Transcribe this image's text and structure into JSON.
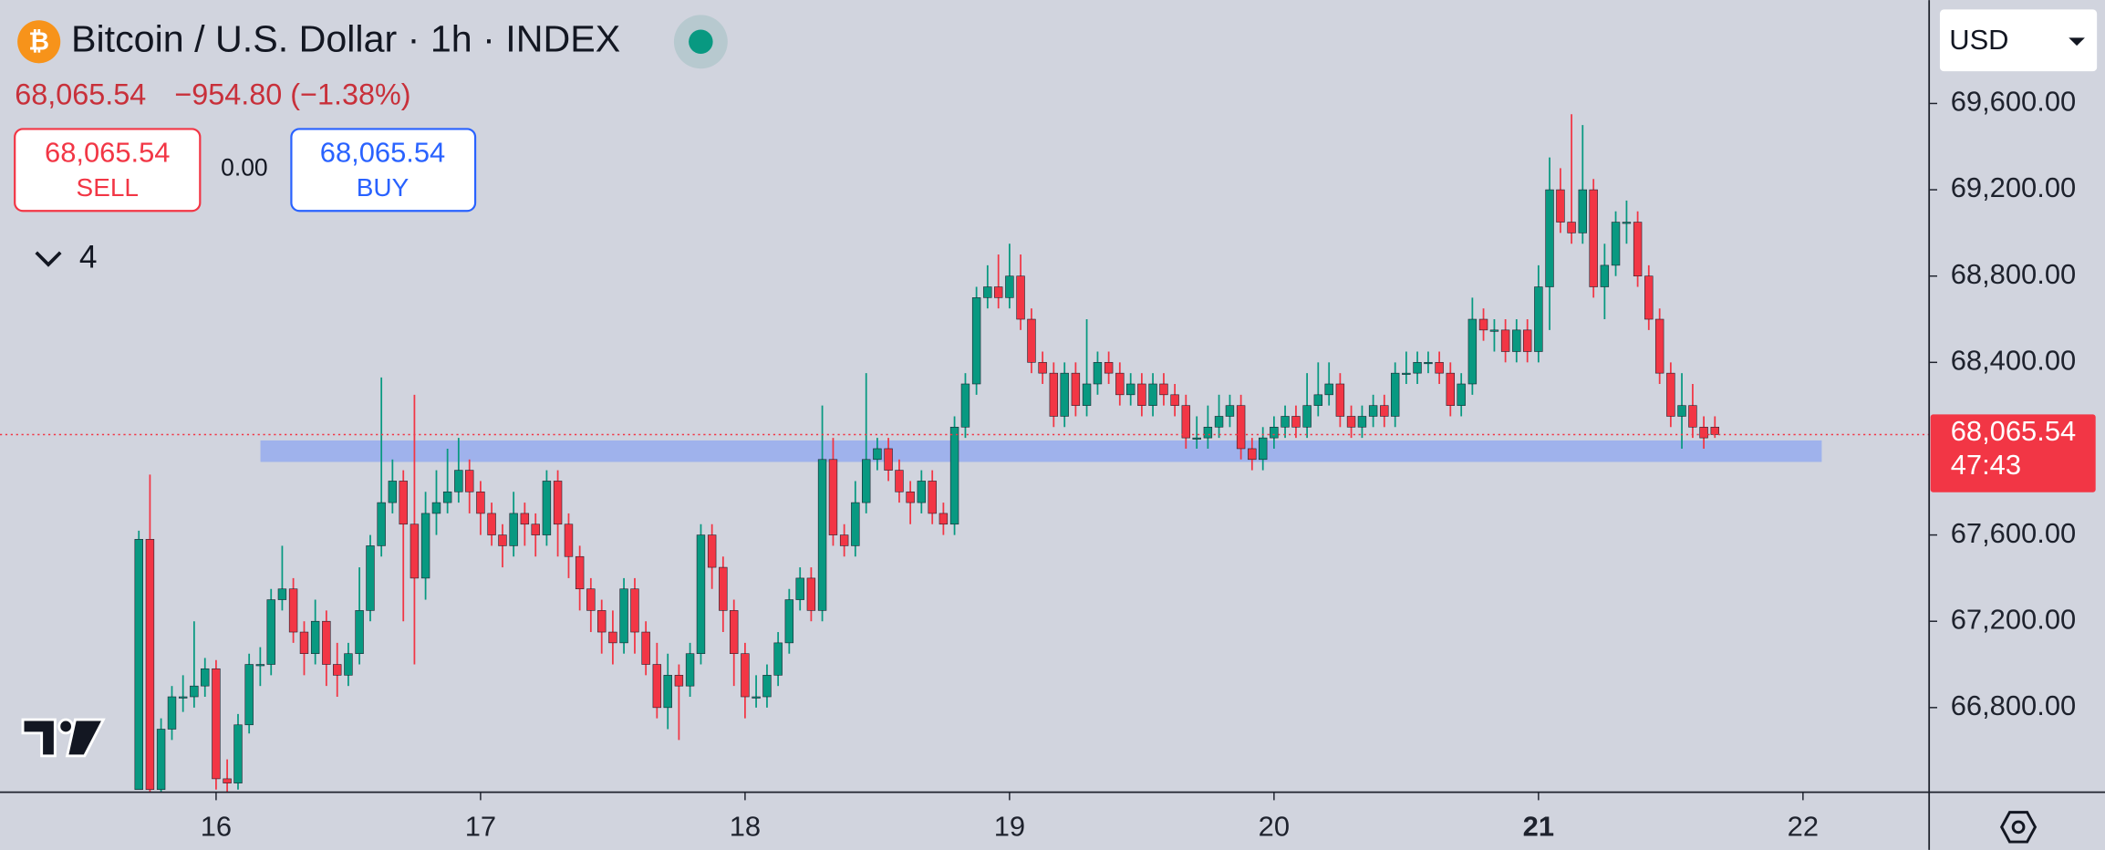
{
  "header": {
    "title": "Bitcoin / U.S. Dollar · 1h · INDEX",
    "price": "68,065.54",
    "change": "−954.80 (−1.38%)",
    "sell_price": "68,065.54",
    "sell_label": "SELL",
    "spread": "0.00",
    "buy_price": "68,065.54",
    "buy_label": "BUY",
    "indicators_count": "4",
    "currency": "USD"
  },
  "chart_data": {
    "type": "candlestick",
    "up_color": "#089981",
    "down_color": "#f23645",
    "x": [
      15.708,
      15.75,
      15.792,
      15.833,
      15.875,
      15.917,
      15.958,
      16,
      16.042,
      16.083,
      16.125,
      16.167,
      16.208,
      16.25,
      16.292,
      16.333,
      16.375,
      16.417,
      16.458,
      16.5,
      16.542,
      16.583,
      16.625,
      16.667,
      16.708,
      16.75,
      16.792,
      16.833,
      16.875,
      16.917,
      16.958,
      17,
      17.042,
      17.083,
      17.125,
      17.167,
      17.208,
      17.25,
      17.292,
      17.333,
      17.375,
      17.417,
      17.458,
      17.5,
      17.542,
      17.583,
      17.625,
      17.667,
      17.708,
      17.75,
      17.792,
      17.833,
      17.875,
      17.917,
      17.958,
      18,
      18.042,
      18.083,
      18.125,
      18.167,
      18.208,
      18.25,
      18.292,
      18.333,
      18.375,
      18.417,
      18.458,
      18.5,
      18.542,
      18.583,
      18.625,
      18.667,
      18.708,
      18.75,
      18.792,
      18.833,
      18.875,
      18.917,
      18.958,
      19,
      19.042,
      19.083,
      19.125,
      19.167,
      19.208,
      19.25,
      19.292,
      19.333,
      19.375,
      19.417,
      19.458,
      19.5,
      19.542,
      19.583,
      19.625,
      19.667,
      19.708,
      19.75,
      19.792,
      19.833,
      19.875,
      19.917,
      19.958,
      20,
      20.042,
      20.083,
      20.125,
      20.167,
      20.208,
      20.25,
      20.292,
      20.333,
      20.375,
      20.417,
      20.458,
      20.5,
      20.542,
      20.583,
      20.625,
      20.667,
      20.708,
      20.75,
      20.792,
      20.833,
      20.875,
      20.917,
      20.958,
      21,
      21.042,
      21.083,
      21.125,
      21.167,
      21.208,
      21.25,
      21.292,
      21.333,
      21.375,
      21.417,
      21.458,
      21.5,
      21.542,
      21.583,
      21.625,
      21.667
    ],
    "open": [
      66420,
      67580,
      66420,
      66700,
      66850,
      66850,
      66900,
      66980,
      66470,
      66450,
      66720,
      67000,
      67000,
      67300,
      67350,
      67150,
      67050,
      67200,
      67000,
      66950,
      67050,
      67250,
      67550,
      67750,
      67850,
      67650,
      67400,
      67700,
      67750,
      67800,
      67900,
      67800,
      67700,
      67600,
      67550,
      67700,
      67650,
      67600,
      67850,
      67650,
      67500,
      67350,
      67250,
      67150,
      67100,
      67350,
      67150,
      67000,
      66800,
      66950,
      66900,
      67050,
      67600,
      67450,
      67250,
      67050,
      66850,
      66850,
      66950,
      67100,
      67300,
      67400,
      67250,
      67950,
      67600,
      67550,
      67750,
      67950,
      68000,
      67900,
      67800,
      67750,
      67850,
      67700,
      67650,
      68100,
      68300,
      68700,
      68750,
      68700,
      68800,
      68600,
      68400,
      68350,
      68150,
      68350,
      68200,
      68300,
      68400,
      68350,
      68250,
      68300,
      68200,
      68300,
      68250,
      68200,
      68050,
      68050,
      68100,
      68150,
      68200,
      68000,
      67950,
      68050,
      68100,
      68150,
      68100,
      68200,
      68250,
      68300,
      68150,
      68100,
      68150,
      68200,
      68150,
      68350,
      68350,
      68400,
      68400,
      68350,
      68200,
      68300,
      68600,
      68550,
      68550,
      68450,
      68550,
      68450,
      68750,
      69200,
      69050,
      69000,
      69200,
      68750,
      68850,
      69050,
      69050,
      68800,
      68600,
      68350,
      68150,
      68200,
      68100,
      68100
    ],
    "high": [
      67620,
      67880,
      66750,
      66900,
      66950,
      67200,
      67030,
      67020,
      66560,
      66770,
      67050,
      67080,
      67350,
      67550,
      67400,
      67200,
      67300,
      67250,
      67100,
      67100,
      67450,
      67600,
      68330,
      67950,
      67900,
      68250,
      67800,
      67900,
      68000,
      68050,
      67950,
      67850,
      67750,
      67650,
      67800,
      67750,
      67700,
      67900,
      67900,
      67700,
      67550,
      67400,
      67300,
      67250,
      67400,
      67400,
      67200,
      67100,
      67050,
      67000,
      67100,
      67650,
      67650,
      67500,
      67300,
      67100,
      66950,
      67000,
      67150,
      67350,
      67450,
      67450,
      68200,
      68050,
      67650,
      67850,
      68350,
      68050,
      68050,
      67950,
      67850,
      67900,
      67900,
      67750,
      68150,
      68350,
      68750,
      68850,
      68900,
      68950,
      68900,
      68650,
      68450,
      68400,
      68400,
      68400,
      68600,
      68450,
      68450,
      68400,
      68350,
      68350,
      68350,
      68350,
      68300,
      68250,
      68150,
      68200,
      68250,
      68250,
      68250,
      68050,
      68100,
      68150,
      68200,
      68200,
      68350,
      68400,
      68400,
      68350,
      68200,
      68200,
      68250,
      68250,
      68400,
      68450,
      68450,
      68450,
      68450,
      68400,
      68350,
      68700,
      68650,
      68600,
      68600,
      68600,
      68600,
      68850,
      69350,
      69300,
      69550,
      69500,
      69250,
      68950,
      69100,
      69150,
      69100,
      68850,
      68650,
      68400,
      68350,
      68300,
      68150,
      68150
    ],
    "low": [
      66420,
      66410,
      66410,
      66650,
      66780,
      66800,
      66850,
      66420,
      66410,
      66420,
      66680,
      66900,
      66950,
      67250,
      67100,
      66950,
      67000,
      66900,
      66850,
      66900,
      67000,
      67200,
      67500,
      67700,
      67200,
      67000,
      67300,
      67600,
      67700,
      67750,
      67700,
      67600,
      67550,
      67450,
      67500,
      67550,
      67500,
      67550,
      67500,
      67400,
      67250,
      67150,
      67050,
      67000,
      67050,
      67050,
      66950,
      66750,
      66700,
      66650,
      66850,
      67000,
      67350,
      67150,
      66900,
      66750,
      66800,
      66800,
      66900,
      67050,
      67250,
      67200,
      67200,
      67550,
      67500,
      67500,
      67700,
      67900,
      67850,
      67750,
      67650,
      67700,
      67650,
      67600,
      67600,
      68050,
      68250,
      68650,
      68650,
      68650,
      68550,
      68350,
      68300,
      68100,
      68100,
      68150,
      68150,
      68250,
      68300,
      68200,
      68200,
      68150,
      68150,
      68200,
      68150,
      68000,
      68000,
      68000,
      68050,
      68100,
      67950,
      67900,
      67900,
      68000,
      68050,
      68050,
      68050,
      68150,
      68200,
      68100,
      68050,
      68050,
      68100,
      68100,
      68100,
      68300,
      68300,
      68350,
      68300,
      68150,
      68150,
      68250,
      68500,
      68450,
      68400,
      68400,
      68400,
      68400,
      68550,
      69000,
      68950,
      68950,
      68700,
      68600,
      68800,
      68950,
      68750,
      68550,
      68300,
      68100,
      68000,
      68050,
      68000,
      68050
    ],
    "close": [
      67580,
      66420,
      66700,
      66850,
      66850,
      66900,
      66980,
      66470,
      66450,
      66720,
      67000,
      67000,
      67300,
      67350,
      67150,
      67050,
      67200,
      67000,
      66950,
      67050,
      67250,
      67550,
      67750,
      67850,
      67650,
      67400,
      67700,
      67750,
      67800,
      67900,
      67800,
      67700,
      67600,
      67550,
      67700,
      67650,
      67600,
      67850,
      67650,
      67500,
      67350,
      67250,
      67150,
      67100,
      67350,
      67150,
      67000,
      66800,
      66950,
      66900,
      67050,
      67600,
      67450,
      67250,
      67050,
      66850,
      66850,
      66950,
      67100,
      67300,
      67400,
      67250,
      67950,
      67600,
      67550,
      67750,
      67950,
      68000,
      67900,
      67800,
      67750,
      67850,
      67700,
      67650,
      68100,
      68300,
      68700,
      68750,
      68700,
      68800,
      68600,
      68400,
      68350,
      68150,
      68350,
      68200,
      68300,
      68400,
      68350,
      68250,
      68300,
      68200,
      68300,
      68250,
      68200,
      68050,
      68050,
      68100,
      68150,
      68200,
      68000,
      67950,
      68050,
      68100,
      68150,
      68100,
      68200,
      68250,
      68300,
      68150,
      68100,
      68150,
      68200,
      68150,
      68350,
      68350,
      68400,
      68400,
      68350,
      68200,
      68300,
      68600,
      68550,
      68550,
      68450,
      68550,
      68450,
      68750,
      69200,
      69050,
      69000,
      69200,
      68750,
      68850,
      69050,
      69050,
      68800,
      68600,
      68350,
      68150,
      68200,
      68100,
      68050,
      68065.54
    ],
    "xlim": [
      15.183,
      22.477
    ],
    "xticks": [
      16,
      17,
      18,
      19,
      20,
      21,
      22
    ],
    "bold_xtick": 21,
    "ylim": [
      66408,
      70079
    ],
    "yticks": [
      {
        "value": 66800,
        "label": "66,800.00"
      },
      {
        "value": 67200,
        "label": "67,200.00"
      },
      {
        "value": 67600,
        "label": "67,600.00"
      },
      {
        "value": 68400,
        "label": "68,400.00"
      },
      {
        "value": 68800,
        "label": "68,800.00"
      },
      {
        "value": 69200,
        "label": "69,200.00"
      },
      {
        "value": 69600,
        "label": "69,600.00"
      }
    ],
    "last_price": {
      "value": 68065.54,
      "label": "68,065.54"
    },
    "countdown": "47:43"
  }
}
